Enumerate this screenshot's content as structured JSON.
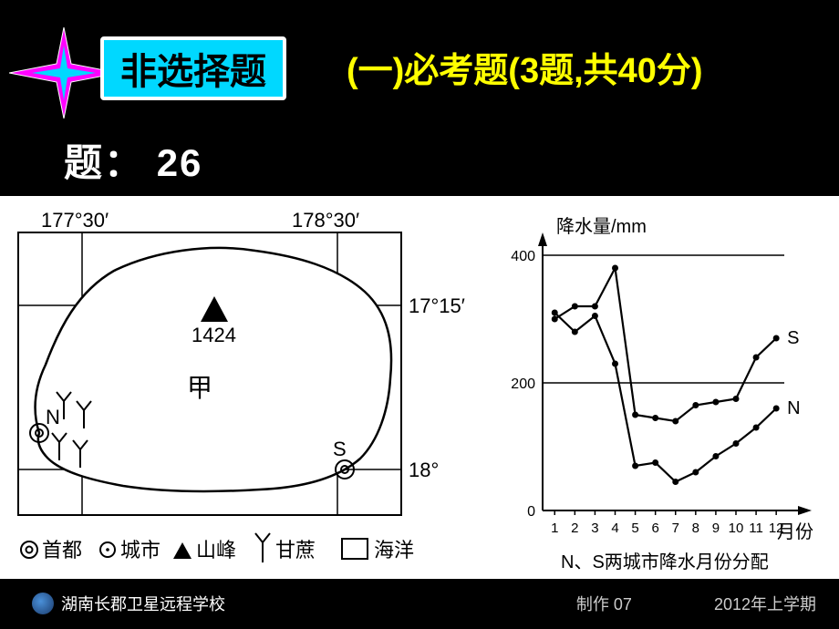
{
  "header": {
    "badge": "非选择题",
    "subtitle": "(一)必考题(3题,共40分)"
  },
  "question": {
    "label": "题：",
    "number": "26"
  },
  "map": {
    "lon_left": "177°30′",
    "lon_right": "178°30′",
    "lat_top": "17°15′",
    "lat_bottom": "18°",
    "peak_label": "1424",
    "island_label": "甲",
    "city_n": "N",
    "city_s": "S",
    "legend": {
      "capital": "首都",
      "city": "城市",
      "peak": "山峰",
      "sugarcane": "甘蔗",
      "ocean": "海洋"
    },
    "border_color": "#000000",
    "island_fill": "#ffffff",
    "line_width": 1.8
  },
  "chart": {
    "type": "line",
    "y_title": "降水量/mm",
    "x_title": "月份",
    "caption": "N、S两城市降水月份分配",
    "ylim": [
      0,
      400
    ],
    "yticks": [
      0,
      200,
      400
    ],
    "months": [
      1,
      2,
      3,
      4,
      5,
      6,
      7,
      8,
      9,
      10,
      11,
      12
    ],
    "series": {
      "S": {
        "label": "S",
        "values": [
          300,
          320,
          320,
          380,
          150,
          145,
          140,
          165,
          170,
          175,
          240,
          270
        ],
        "color": "#000000",
        "marker": "circle",
        "line_width": 2.2
      },
      "N": {
        "label": "N",
        "values": [
          310,
          280,
          305,
          230,
          70,
          75,
          45,
          60,
          85,
          105,
          130,
          160
        ],
        "color": "#000000",
        "marker": "circle",
        "line_width": 2.2
      }
    },
    "grid_color": "#000000",
    "background_color": "#ffffff",
    "label_fontsize": 20,
    "tick_fontsize": 16
  },
  "footer": {
    "school": "湖南长郡卫星远程学校",
    "producer": "制作 07",
    "term": "2012年上学期"
  },
  "colors": {
    "badge_bg": "#00d8ff",
    "badge_border": "#ffffff",
    "subtitle": "#ffff00",
    "star_fill": "#ff00ff",
    "star_core": "#00d8ff",
    "slide_bg": "#000000"
  }
}
